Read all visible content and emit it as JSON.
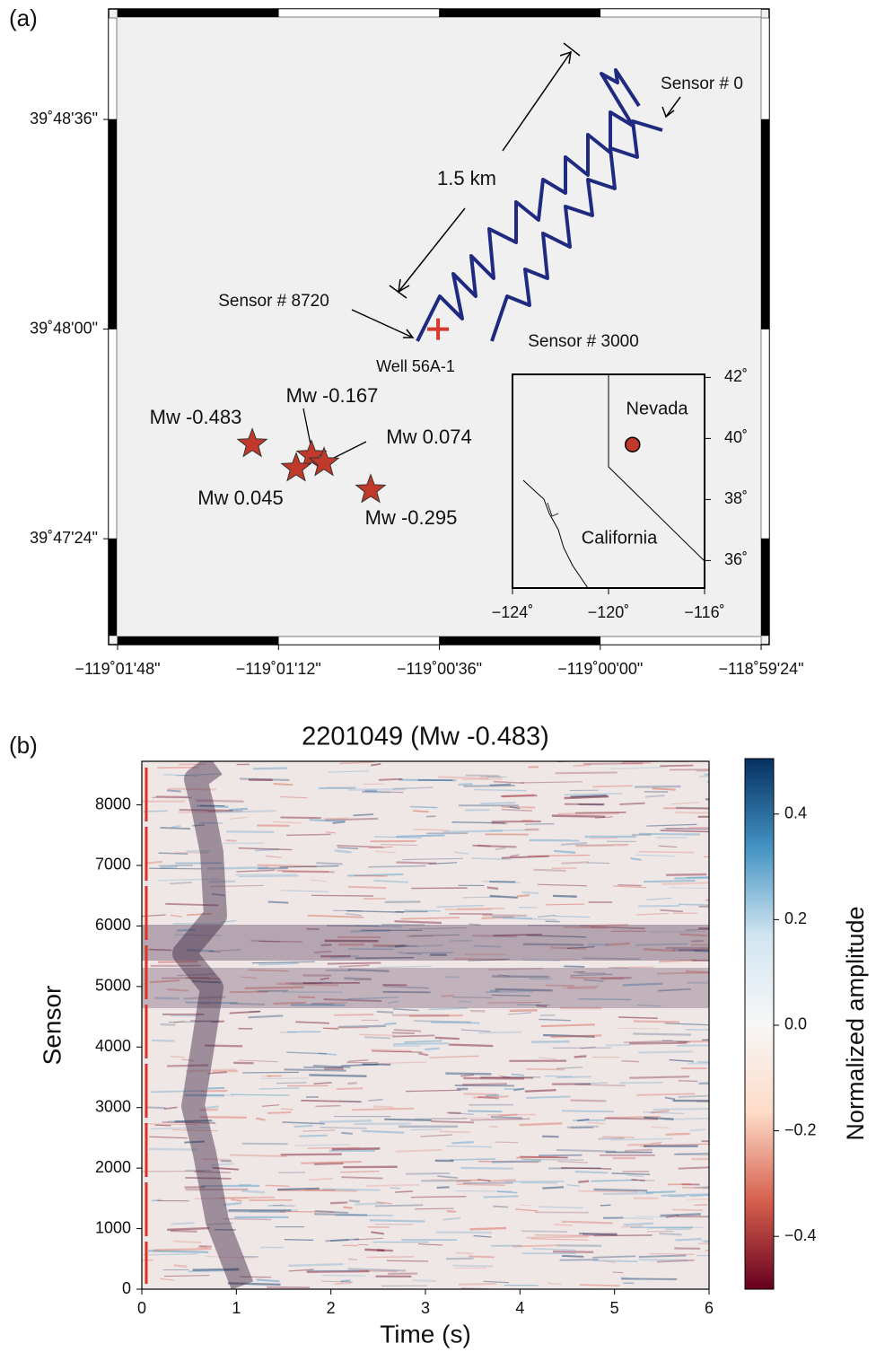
{
  "chart_data": [
    {
      "type": "map",
      "panel_label": "(a)",
      "xlim": [
        -119.03056,
        -118.9895
      ],
      "ylim": [
        39.78495,
        39.81527
      ],
      "xticks": [
        {
          "value": -119.03,
          "label": "−119˚01'48\""
        },
        {
          "value": -119.02,
          "label": "−119˚01'12\""
        },
        {
          "value": -119.01,
          "label": "−119˚00'36\""
        },
        {
          "value": -119.0,
          "label": "−119˚00'00\""
        },
        {
          "value": -118.99,
          "label": "−118˚59'24\""
        }
      ],
      "yticks": [
        {
          "value": 39.81,
          "label": "39˚48'36\""
        },
        {
          "value": 39.8,
          "label": "39˚48'00\""
        },
        {
          "value": 39.79,
          "label": "39˚47'24\""
        }
      ],
      "events": {
        "x": [
          -119.02163,
          -119.01795,
          -119.01717,
          -119.0189,
          -119.01427
        ],
        "y": [
          39.79452,
          39.79396,
          39.79362,
          39.79336,
          39.79233
        ],
        "values": [
          -0.483,
          -0.167,
          0.074,
          0.045,
          -0.295
        ],
        "value_labels": [
          "Mw -0.483",
          "Mw -0.167",
          "Mw 0.074",
          "Mw 0.045",
          "Mw -0.295"
        ],
        "color": "#c0392b"
      },
      "well": {
        "x": -119.01008,
        "y": 39.8,
        "label": "Well 56A-1",
        "color": "#d63a2f"
      },
      "annotations": [
        "Sensor # 0",
        "Sensor # 8720",
        "Sensor # 3000",
        "1.5 km"
      ],
      "cable_color": "#1f2a80",
      "inset": {
        "xlim": [
          -124,
          -116
        ],
        "ylim": [
          35.1,
          42.1
        ],
        "xticks": [
          {
            "value": -124,
            "label": "−124˚"
          },
          {
            "value": -120,
            "label": "−120˚"
          },
          {
            "value": -116,
            "label": "−116˚"
          }
        ],
        "yticks": [
          {
            "value": 42,
            "label": "42˚"
          },
          {
            "value": 40,
            "label": "40˚"
          },
          {
            "value": 38,
            "label": "38˚"
          },
          {
            "value": 36,
            "label": "36˚"
          }
        ],
        "labels": [
          "Nevada",
          "California"
        ],
        "site": {
          "x": -119,
          "y": 39.8
        },
        "site_color": "#c0392b"
      }
    },
    {
      "type": "heatmap",
      "panel_label": "(b)",
      "title": "2201049 (Mw -0.483)",
      "xlabel": "Time (s)",
      "ylabel": "Sensor",
      "xlim": [
        0,
        6
      ],
      "xticks": [
        0,
        1,
        2,
        3,
        4,
        5,
        6
      ],
      "ylim": [
        0,
        8720
      ],
      "yticks": [
        0,
        1000,
        2000,
        3000,
        4000,
        5000,
        6000,
        7000,
        8000
      ],
      "colorbar": {
        "label": "Normalized amplitude",
        "lim": [
          -0.5,
          0.505
        ],
        "ticks": [
          {
            "value": -0.4,
            "label": "−0.4"
          },
          {
            "value": -0.2,
            "label": "−0.2"
          },
          {
            "value": 0,
            "label": "0.0"
          },
          0.2,
          0.4
        ],
        "colors": [
          "#67001f",
          "#d6604d",
          "#fddbc7",
          "#f7f7f7",
          "#d1e5f0",
          "#4393c3",
          "#053061"
        ]
      }
    }
  ]
}
